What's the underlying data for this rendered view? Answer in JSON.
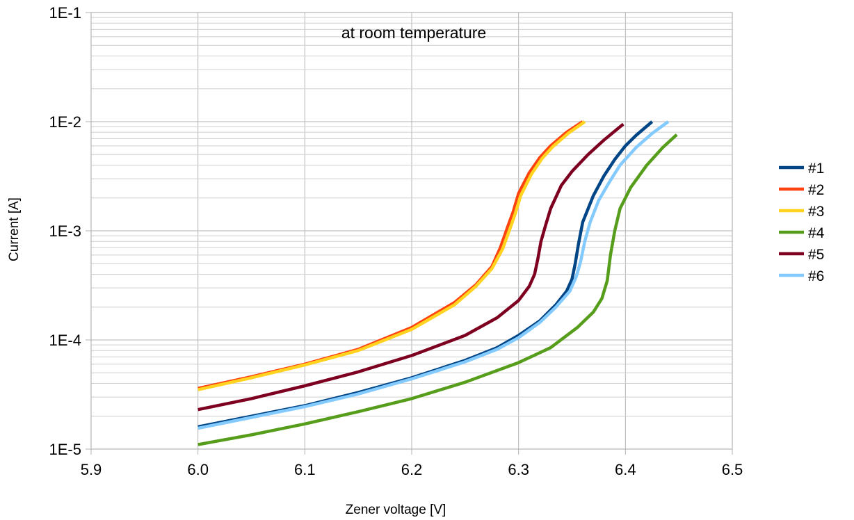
{
  "chart_data": {
    "type": "line",
    "title": "at room temperature",
    "xlabel": "Zener voltage [V]",
    "ylabel": "Current [A]",
    "xlim": [
      5.9,
      6.5
    ],
    "ylim": [
      1e-05,
      0.1
    ],
    "yscale": "log",
    "grid": true,
    "legend_position": "right",
    "x_ticks": [
      5.9,
      6.0,
      6.1,
      6.2,
      6.3,
      6.4,
      6.5
    ],
    "x_tick_labels": [
      "5.9",
      "6.0",
      "6.1",
      "6.2",
      "6.3",
      "6.4",
      "6.5"
    ],
    "y_ticks": [
      1e-05,
      0.0001,
      0.001,
      0.01,
      0.1
    ],
    "y_tick_labels": [
      "1E-5",
      "1E-4",
      "1E-3",
      "1E-2",
      "1E-1"
    ],
    "series": [
      {
        "name": "#1",
        "color": "#004586",
        "x": [
          6.0,
          6.05,
          6.1,
          6.15,
          6.2,
          6.25,
          6.28,
          6.3,
          6.32,
          6.335,
          6.345,
          6.35,
          6.353,
          6.356,
          6.36,
          6.37,
          6.38,
          6.39,
          6.4,
          6.41,
          6.425
        ],
        "y": [
          1.6e-05,
          2e-05,
          2.5e-05,
          3.3e-05,
          4.5e-05,
          6.5e-05,
          8.5e-05,
          0.00011,
          0.00015,
          0.00021,
          0.00028,
          0.00036,
          0.0005,
          0.00075,
          0.0012,
          0.0021,
          0.0032,
          0.0045,
          0.006,
          0.0075,
          0.01
        ]
      },
      {
        "name": "#2",
        "color": "#ff420e",
        "x": [
          6.0,
          6.05,
          6.1,
          6.15,
          6.2,
          6.24,
          6.26,
          6.275,
          6.283,
          6.29,
          6.295,
          6.3,
          6.31,
          6.32,
          6.33,
          6.345,
          6.36
        ],
        "y": [
          3.6e-05,
          4.6e-05,
          6e-05,
          8.2e-05,
          0.00013,
          0.00022,
          0.00032,
          0.00047,
          0.0007,
          0.0011,
          0.0015,
          0.0022,
          0.0034,
          0.0047,
          0.006,
          0.008,
          0.01
        ]
      },
      {
        "name": "#3",
        "color": "#ffd320",
        "x": [
          6.0,
          6.05,
          6.1,
          6.15,
          6.2,
          6.24,
          6.26,
          6.275,
          6.285,
          6.292,
          6.297,
          6.302,
          6.312,
          6.322,
          6.332,
          6.347,
          6.362
        ],
        "y": [
          3.5e-05,
          4.5e-05,
          5.9e-05,
          8e-05,
          0.000125,
          0.00021,
          0.00031,
          0.00045,
          0.00068,
          0.00105,
          0.00145,
          0.0021,
          0.0033,
          0.0046,
          0.0059,
          0.0079,
          0.01
        ]
      },
      {
        "name": "#4",
        "color": "#579d1c",
        "x": [
          6.0,
          6.05,
          6.1,
          6.15,
          6.2,
          6.25,
          6.3,
          6.33,
          6.355,
          6.37,
          6.378,
          6.383,
          6.386,
          6.39,
          6.395,
          6.405,
          6.42,
          6.435,
          6.448
        ],
        "y": [
          1.1e-05,
          1.35e-05,
          1.7e-05,
          2.2e-05,
          2.9e-05,
          4.1e-05,
          6.2e-05,
          8.5e-05,
          0.00013,
          0.00018,
          0.00024,
          0.00035,
          0.0006,
          0.001,
          0.0016,
          0.0025,
          0.004,
          0.0058,
          0.0076
        ]
      },
      {
        "name": "#5",
        "color": "#7e0021",
        "x": [
          6.0,
          6.05,
          6.1,
          6.15,
          6.2,
          6.25,
          6.28,
          6.3,
          6.31,
          6.315,
          6.318,
          6.321,
          6.325,
          6.33,
          6.34,
          6.35,
          6.365,
          6.38,
          6.398
        ],
        "y": [
          2.3e-05,
          2.9e-05,
          3.8e-05,
          5.1e-05,
          7.2e-05,
          0.00011,
          0.00016,
          0.00023,
          0.00031,
          0.0004,
          0.00055,
          0.0008,
          0.0011,
          0.0016,
          0.0026,
          0.0035,
          0.005,
          0.0068,
          0.0095
        ]
      },
      {
        "name": "#6",
        "color": "#83caff",
        "x": [
          6.0,
          6.05,
          6.1,
          6.15,
          6.2,
          6.25,
          6.28,
          6.3,
          6.32,
          6.335,
          6.348,
          6.354,
          6.358,
          6.362,
          6.367,
          6.375,
          6.385,
          6.395,
          6.41,
          6.425,
          6.44
        ],
        "y": [
          1.55e-05,
          1.95e-05,
          2.45e-05,
          3.2e-05,
          4.4e-05,
          6.3e-05,
          8.2e-05,
          0.000105,
          0.000145,
          0.0002,
          0.00028,
          0.00038,
          0.00052,
          0.0008,
          0.0012,
          0.0019,
          0.0028,
          0.004,
          0.0058,
          0.0078,
          0.01
        ]
      }
    ]
  }
}
